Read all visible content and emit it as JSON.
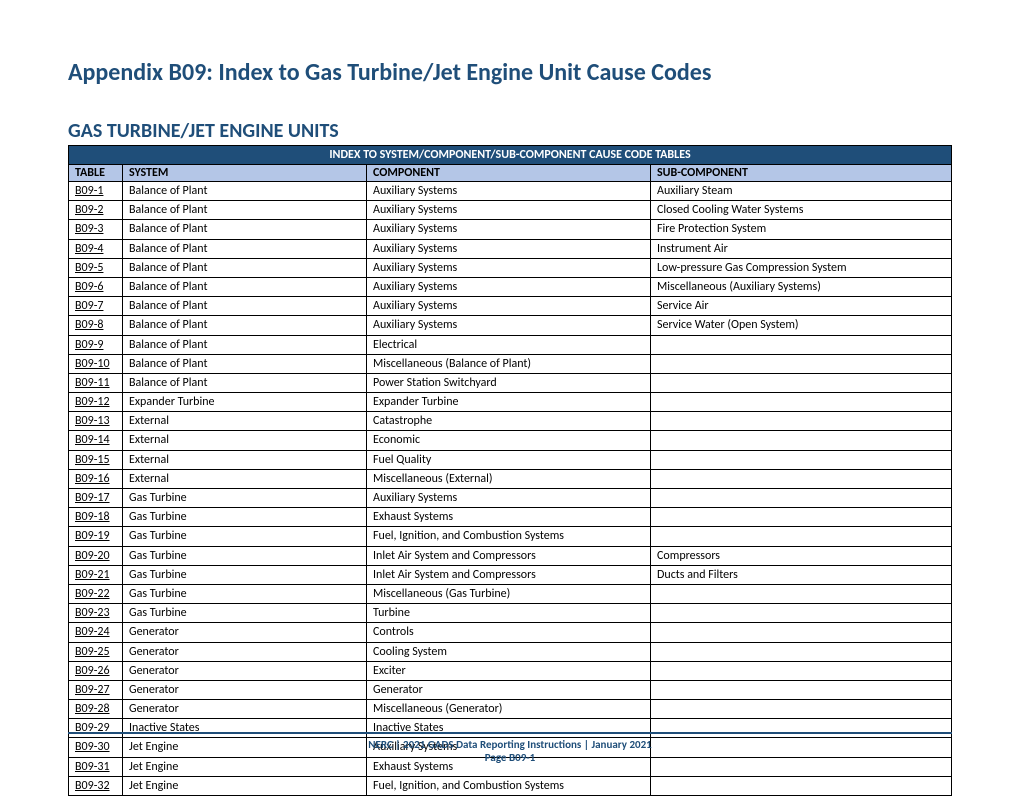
{
  "page_title": "Appendix B09: Index to Gas Turbine/Jet Engine Unit Cause Codes",
  "section_title": "GAS TURBINE/JET ENGINE UNITS",
  "table": {
    "banner": "INDEX TO SYSTEM/COMPONENT/SUB-COMPONENT CAUSE CODE TABLES",
    "columns": [
      "TABLE",
      "SYSTEM",
      "COMPONENT",
      "SUB-COMPONENT"
    ],
    "rows": [
      [
        "B09-1",
        "Balance of Plant",
        "Auxiliary Systems",
        "Auxiliary Steam"
      ],
      [
        "B09-2",
        "Balance of Plant",
        "Auxiliary Systems",
        "Closed Cooling Water Systems"
      ],
      [
        "B09-3",
        "Balance of Plant",
        "Auxiliary Systems",
        "Fire Protection System"
      ],
      [
        "B09-4",
        "Balance of Plant",
        "Auxiliary Systems",
        "Instrument Air"
      ],
      [
        "B09-5",
        "Balance of Plant",
        "Auxiliary Systems",
        "Low-pressure Gas Compression System"
      ],
      [
        "B09-6",
        "Balance of Plant",
        "Auxiliary Systems",
        "Miscellaneous (Auxiliary Systems)"
      ],
      [
        "B09-7",
        "Balance of Plant",
        "Auxiliary Systems",
        "Service Air"
      ],
      [
        "B09-8",
        "Balance of Plant",
        "Auxiliary Systems",
        "Service Water (Open System)"
      ],
      [
        "B09-9",
        "Balance of Plant",
        "Electrical",
        ""
      ],
      [
        "B09-10",
        "Balance of Plant",
        "Miscellaneous (Balance of Plant)",
        ""
      ],
      [
        "B09-11",
        "Balance of Plant",
        "Power Station Switchyard",
        ""
      ],
      [
        "B09-12",
        "Expander Turbine",
        "Expander Turbine",
        ""
      ],
      [
        "B09-13",
        "External",
        "Catastrophe",
        ""
      ],
      [
        "B09-14",
        "External",
        "Economic",
        ""
      ],
      [
        "B09-15",
        "External",
        "Fuel Quality",
        ""
      ],
      [
        "B09-16",
        "External",
        "Miscellaneous (External)",
        ""
      ],
      [
        "B09-17",
        "Gas Turbine",
        "Auxiliary Systems",
        ""
      ],
      [
        "B09-18",
        "Gas Turbine",
        "Exhaust Systems",
        ""
      ],
      [
        "B09-19",
        "Gas Turbine",
        "Fuel, Ignition, and Combustion Systems",
        ""
      ],
      [
        "B09-20",
        "Gas Turbine",
        "Inlet Air System and Compressors",
        "Compressors"
      ],
      [
        "B09-21",
        "Gas Turbine",
        "Inlet Air System and Compressors",
        "Ducts and Filters"
      ],
      [
        "B09-22",
        "Gas Turbine",
        "Miscellaneous (Gas Turbine)",
        ""
      ],
      [
        "B09-23",
        "Gas Turbine",
        "Turbine",
        ""
      ],
      [
        "B09-24",
        "Generator",
        "Controls",
        ""
      ],
      [
        "B09-25",
        "Generator",
        "Cooling System",
        ""
      ],
      [
        "B09-26",
        "Generator",
        "Exciter",
        ""
      ],
      [
        "B09-27",
        "Generator",
        "Generator",
        ""
      ],
      [
        "B09-28",
        "Generator",
        "Miscellaneous (Generator)",
        ""
      ],
      [
        "B09-29",
        "Inactive States",
        "Inactive States",
        ""
      ],
      [
        "B09-30",
        "Jet Engine",
        "Auxiliary Systems",
        ""
      ],
      [
        "B09-31",
        "Jet Engine",
        "Exhaust Systems",
        ""
      ],
      [
        "B09-32",
        "Jet Engine",
        "Fuel, Ignition, and Combustion Systems",
        ""
      ]
    ]
  },
  "footer": {
    "line1": "NERC | 2021 GADS Data Reporting Instructions | January 2021",
    "line2": "Page B09-1"
  },
  "colors": {
    "title_color": "#1f4e79",
    "banner_bg": "#1f4e79",
    "banner_fg": "#ffffff",
    "header_bg": "#b4c6e7",
    "border_color": "#000000",
    "footer_color": "#1f4e79"
  },
  "typography": {
    "page_title_fontsize": 24,
    "section_title_fontsize": 20,
    "table_fontsize": 12,
    "footer_fontsize": 11
  }
}
